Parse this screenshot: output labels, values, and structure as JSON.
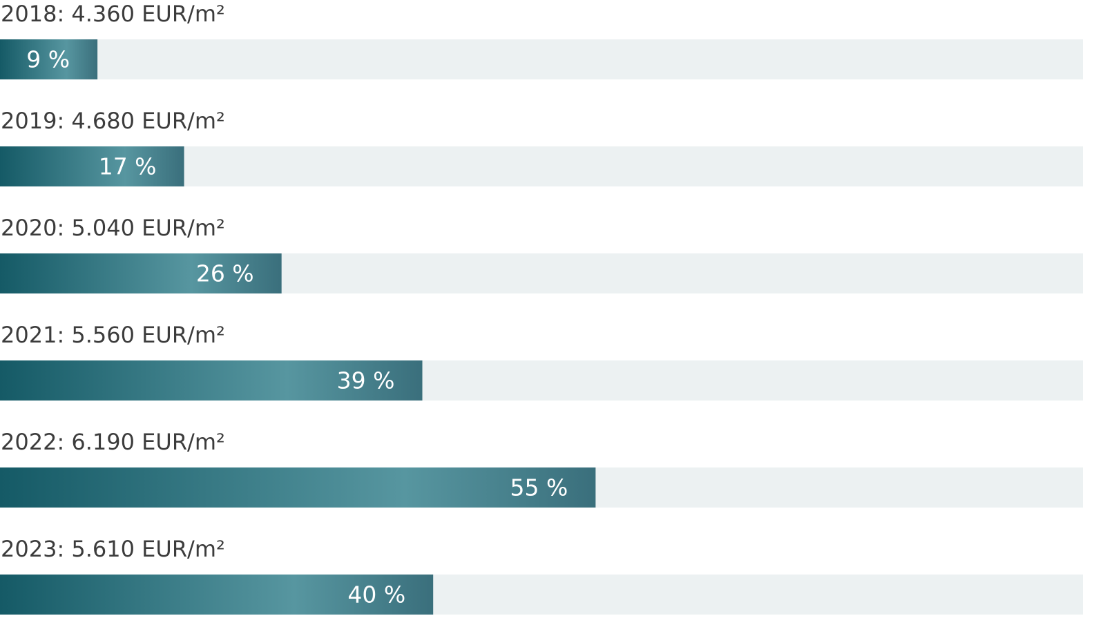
{
  "chart_data": {
    "type": "progress-bar",
    "categories": [
      "2018: 4.360 EUR/m²",
      "2019: 4.680 EUR/m²",
      "2020: 5.040 EUR/m²",
      "2021: 5.560 EUR/m²",
      "2022: 6.190 EUR/m²",
      "2023: 5.610 EUR/m²"
    ],
    "values": [
      9,
      17,
      26,
      39,
      55,
      40
    ],
    "value_labels": [
      "9 %",
      "17 %",
      "26 %",
      "39 %",
      "55 %",
      "40 %"
    ],
    "xlim": [
      0,
      100
    ],
    "color": "#1b5f6b",
    "track_color": "#ecf1f2"
  }
}
